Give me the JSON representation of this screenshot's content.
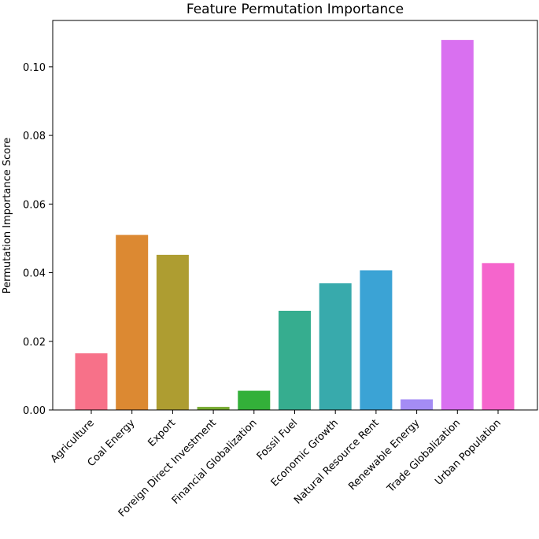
{
  "chart_data": {
    "type": "bar",
    "title": "Feature Permutation Importance",
    "xlabel": "",
    "ylabel": "Permutation Importance Score",
    "ylim": [
      0,
      0.1135
    ],
    "grid": false,
    "y_ticks": [
      {
        "value": 0.0,
        "label": "0.00"
      },
      {
        "value": 0.02,
        "label": "0.02"
      },
      {
        "value": 0.04,
        "label": "0.04"
      },
      {
        "value": 0.06,
        "label": "0.06"
      },
      {
        "value": 0.08,
        "label": "0.08"
      },
      {
        "value": 0.1,
        "label": "0.10"
      }
    ],
    "categories": [
      "Agriculture",
      "Coal Energy",
      "Export",
      "Foreign Direct Investment",
      "Financial Globalization",
      "Fossil Fuel",
      "Economic Growth",
      "Natural Resource Rent",
      "Renewable Energy",
      "Trade Globalization",
      "Urban Population"
    ],
    "values": [
      0.0165,
      0.051,
      0.0452,
      0.0009,
      0.0056,
      0.0289,
      0.0369,
      0.0407,
      0.0031,
      0.1078,
      0.0428
    ],
    "colors": [
      "#f77189",
      "#dc8932",
      "#ae9d31",
      "#77ab31",
      "#33b039",
      "#36ad8f",
      "#38aaac",
      "#3ba3d5",
      "#a48cf4",
      "#d970f0",
      "#f565cc"
    ]
  }
}
